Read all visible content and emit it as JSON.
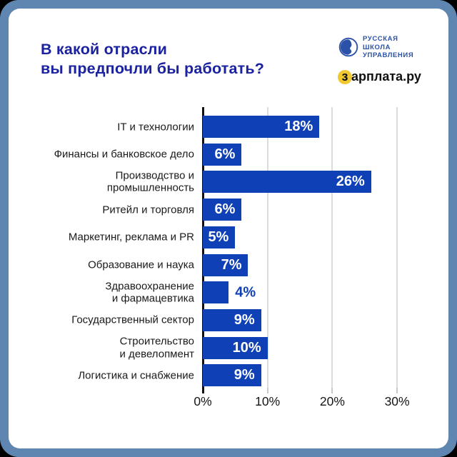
{
  "header": {
    "title_line1": "В какой отрасли",
    "title_line2": "вы предпочли бы работать?",
    "rsu_logo": {
      "line1": "РУССКАЯ",
      "line2": "ШКОЛА",
      "line3": "УПРАВЛЕНИЯ"
    },
    "zarplata_logo": {
      "highlight_letter": "з",
      "text_rest": "арплата.ру"
    }
  },
  "chart_data": {
    "type": "bar",
    "orientation": "horizontal",
    "title": "В какой отрасли вы предпочли бы работать?",
    "unit": "%",
    "categories": [
      "IT и технологии",
      "Финансы и банковское дело",
      "Производство и\nпромышленность",
      "Ритейл и торговля",
      "Маркетинг, реклама и PR",
      "Образование и наука",
      "Здравоохранение\nи фармацевтика",
      "Государственный сектор",
      "Строительство\nи девелопмент",
      "Логистика и снабжение"
    ],
    "values": [
      18,
      6,
      26,
      6,
      5,
      7,
      4,
      9,
      10,
      9
    ],
    "value_labels": [
      "18%",
      "6%",
      "26%",
      "6%",
      "5%",
      "7%",
      "4%",
      "9%",
      "10%",
      "9%"
    ],
    "xticks": {
      "values": [
        0,
        10,
        20,
        30
      ],
      "labels": [
        "0%",
        "10%",
        "20%",
        "30%"
      ]
    },
    "xlim": [
      0,
      33
    ],
    "grid": "vertical",
    "legend": "none",
    "bar_color": "#1040B5",
    "value_label_color_inside": "#FFFFFF",
    "value_label_color_outside": "#1040B5"
  },
  "colors": {
    "frame": "#5E86B0",
    "card": "#FFFFFF",
    "title": "#1B229F",
    "bar": "#1040B5",
    "category_text": "#1A1A1A",
    "gridline": "#DCDCDC",
    "axis": "#111111",
    "rsu_blue": "#2B52A8",
    "zarplata_yellow": "#F2C832"
  }
}
